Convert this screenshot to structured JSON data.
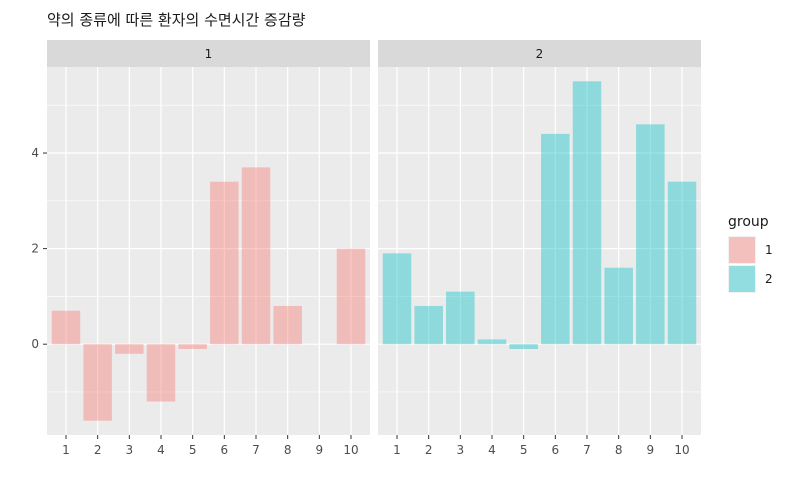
{
  "chart_data": {
    "type": "bar",
    "title": "약의 종류에 따른 환자의 수면시간 증감량",
    "xlabel": "",
    "ylabel": "",
    "categories": [
      "1",
      "2",
      "3",
      "4",
      "5",
      "6",
      "7",
      "8",
      "9",
      "10"
    ],
    "ylim": [
      -1.9,
      5.8
    ],
    "yticks": [
      0,
      2,
      4
    ],
    "facet_by": "group",
    "grid": true,
    "legend": {
      "title": "group",
      "placement": "right"
    },
    "series": [
      {
        "name": "1",
        "facet": "1",
        "color": "#F8766D",
        "values": [
          0.7,
          -1.6,
          -0.2,
          -1.2,
          -0.1,
          3.4,
          3.7,
          0.8,
          0.0,
          2.0
        ]
      },
      {
        "name": "2",
        "facet": "2",
        "color": "#00BFC4",
        "values": [
          1.9,
          0.8,
          1.1,
          0.1,
          -0.1,
          4.4,
          5.5,
          1.6,
          4.6,
          3.4
        ]
      }
    ]
  }
}
